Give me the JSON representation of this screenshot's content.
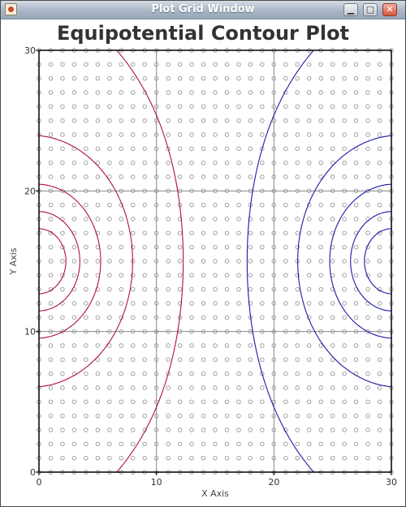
{
  "window": {
    "title": "Plot Grid Window",
    "min_glyph": "▁",
    "max_glyph": "□",
    "close_glyph": "✕"
  },
  "chart_data": {
    "type": "line",
    "title": "Equipotential Contour Plot",
    "xlabel": "X Axis",
    "ylabel": "Y Axis",
    "xlim": [
      0,
      30
    ],
    "ylim": [
      0,
      30
    ],
    "xticks": [
      0,
      10,
      20,
      30
    ],
    "yticks": [
      0,
      10,
      20,
      30
    ],
    "grid": true,
    "grid_point_spacing": 1,
    "charges": [
      {
        "x": 0,
        "y": 15,
        "q": 1
      },
      {
        "x": 30,
        "y": 15,
        "q": -1
      }
    ],
    "contour_levels": [
      0.4,
      0.25,
      0.15,
      0.08,
      0.025,
      0,
      -0.025,
      -0.08,
      -0.15,
      -0.25,
      -0.4
    ],
    "colors": {
      "positive": "#b0103a",
      "negative": "#1a1aa8",
      "gridline": "#888888",
      "grid_marker": "#8a8a8a",
      "frame": "#000000"
    }
  }
}
